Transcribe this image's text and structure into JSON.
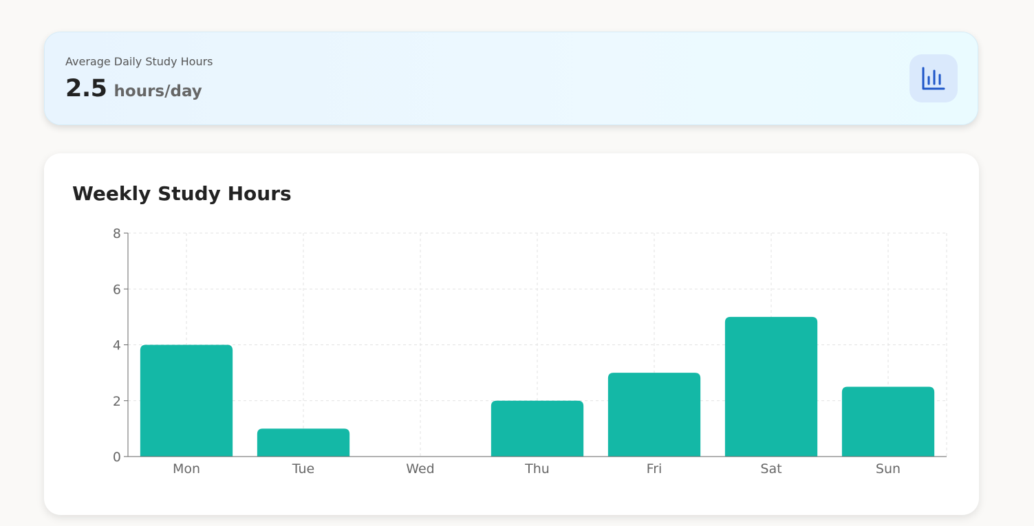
{
  "summary": {
    "label": "Average Daily Study Hours",
    "value": "2.5",
    "unit": "hours/day",
    "icon": "bar-chart-icon"
  },
  "colors": {
    "bar": "#14b8a6",
    "icon": "#1e56c8",
    "icon_bg": "#dae9fc"
  },
  "chart_data": {
    "type": "bar",
    "title": "Weekly Study Hours",
    "categories": [
      "Mon",
      "Tue",
      "Wed",
      "Thu",
      "Fri",
      "Sat",
      "Sun"
    ],
    "values": [
      4,
      1,
      0,
      2,
      3,
      5,
      2.5
    ],
    "ylim": [
      0,
      8
    ],
    "yticks": [
      0,
      2,
      4,
      6,
      8
    ],
    "xlabel": "",
    "ylabel": "",
    "grid": true,
    "legend": "none"
  }
}
